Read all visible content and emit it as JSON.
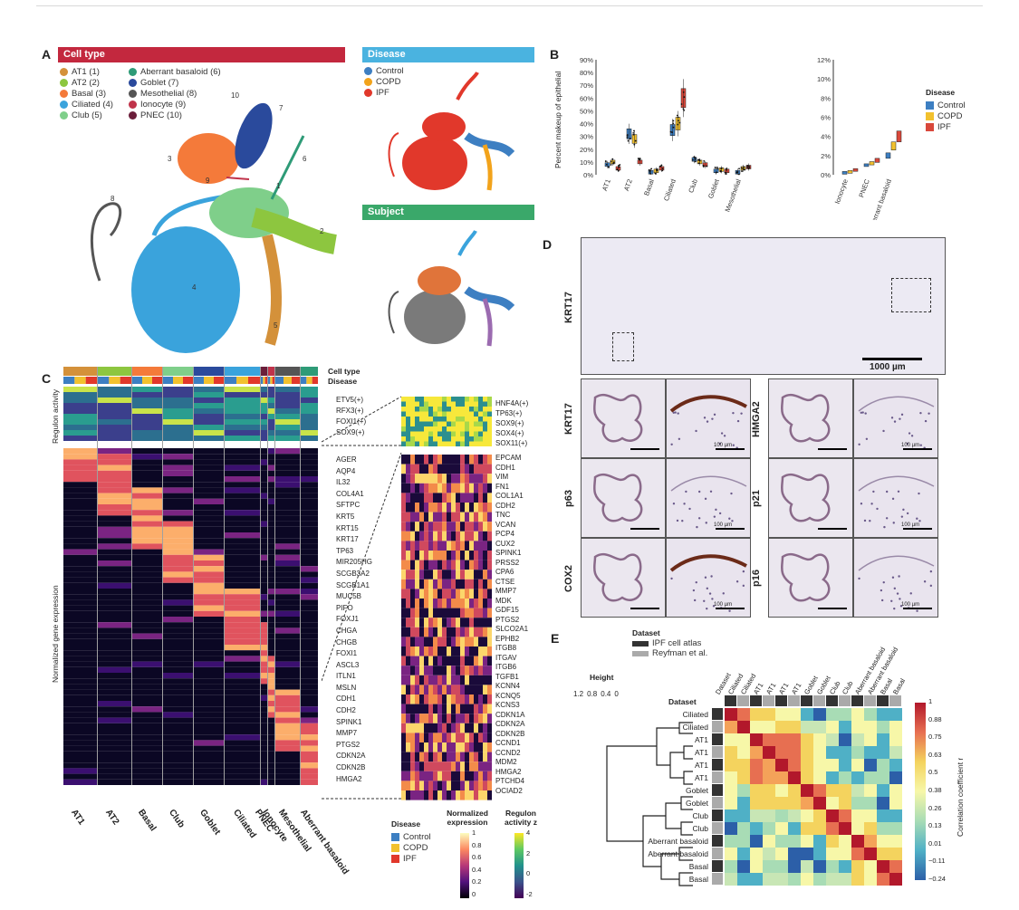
{
  "panels": {
    "A": "A",
    "B": "B",
    "C": "C",
    "D": "D",
    "E": "E"
  },
  "panelA": {
    "celltype_header": "Cell type",
    "celltype_legend": [
      {
        "label": "AT1",
        "num": "(1)",
        "color": "#d4913a"
      },
      {
        "label": "AT2",
        "num": "(2)",
        "color": "#8dc63f"
      },
      {
        "label": "Basal",
        "num": "(3)",
        "color": "#f47a3a"
      },
      {
        "label": "Ciliated",
        "num": "(4)",
        "color": "#3aa3dc"
      },
      {
        "label": "Club",
        "num": "(5)",
        "color": "#7fcf8a"
      },
      {
        "label": "Aberrant basaloid",
        "num": "(6)",
        "color": "#2e9b77"
      },
      {
        "label": "Goblet",
        "num": "(7)",
        "color": "#2a4a9c"
      },
      {
        "label": "Mesothelial",
        "num": "(8)",
        "color": "#555555"
      },
      {
        "label": "Ionocyte",
        "num": "(9)",
        "color": "#c0334a"
      },
      {
        "label": "PNEC",
        "num": "(10)",
        "color": "#6b1e3a"
      }
    ],
    "umap_numbers": [
      "1",
      "2",
      "3",
      "4",
      "5",
      "6",
      "7",
      "8",
      "9",
      "10"
    ],
    "disease_header": "Disease",
    "disease_legend": [
      {
        "label": "Control",
        "color": "#3d7fc2"
      },
      {
        "label": "COPD",
        "color": "#f2a31b"
      },
      {
        "label": "IPF",
        "color": "#e1382b"
      }
    ],
    "subject_header": "Subject",
    "header_colors": {
      "celltype": "#c3283e",
      "disease": "#4ab3e0",
      "subject": "#3aa86a"
    }
  },
  "panelB": {
    "ylabel": "Percent makeup of epithelial",
    "yticks_left": [
      "90%",
      "80%",
      "70%",
      "60%",
      "50%",
      "40%",
      "30%",
      "20%",
      "10%",
      "0%"
    ],
    "yticks_right": [
      "12%",
      "10%",
      "8%",
      "6%",
      "4%",
      "2%",
      "0%"
    ],
    "categories_left": [
      "AT1",
      "AT2",
      "Basal",
      "Ciliated",
      "Club",
      "Goblet",
      "Mesothelial"
    ],
    "categories_right": [
      "Ionocyte",
      "PNEC",
      "Aberrant basaloid"
    ],
    "legend_title": "Disease",
    "legend": [
      {
        "label": "Control",
        "color": "#3d7fc2"
      },
      {
        "label": "COPD",
        "color": "#f2c12e"
      },
      {
        "label": "IPF",
        "color": "#d9483b"
      }
    ]
  },
  "panelC": {
    "row_labels": {
      "celltype": "Cell type",
      "disease": "Disease"
    },
    "side_labels": {
      "regulon": "Regulon activity",
      "expr": "Normalized gene expression"
    },
    "regulon_genes": [
      "ETV5(+)",
      "RFX3(+)",
      "FOXI1(+)",
      "SOX9(+)"
    ],
    "marker_genes": [
      "AGER",
      "AQP4",
      "IL32",
      "COL4A1",
      "SFTPC",
      "KRT5",
      "KRT15",
      "KRT17",
      "TP63",
      "MIR205HG",
      "SCGB3A2",
      "SCGB1A1",
      "MUC5B",
      "PIFO",
      "FOXJ1",
      "CHGA",
      "CHGB",
      "FOXI1",
      "ASCL3",
      "ITLN1",
      "MSLN",
      "CDH1",
      "CDH2",
      "SPINK1",
      "MMP7",
      "PTGS2",
      "CDKN2A",
      "CDKN2B",
      "HMGA2"
    ],
    "zoom_regulon_genes": [
      "HNF4A(+)",
      "TP63(+)",
      "SOX9(+)",
      "SOX4(+)",
      "SOX11(+)"
    ],
    "zoom_genes": [
      "EPCAM",
      "CDH1",
      "VIM",
      "FN1",
      "COL1A1",
      "CDH2",
      "TNC",
      "VCAN",
      "PCP4",
      "CUX2",
      "SPINK1",
      "PRSS2",
      "CPA6",
      "CTSE",
      "MMP7",
      "MDK",
      "GDF15",
      "PTGS2",
      "SLCO2A1",
      "EPHB2",
      "ITGB8",
      "ITGAV",
      "ITGB6",
      "TGFB1",
      "KCNN4",
      "KCNQ5",
      "KCNS3",
      "CDKN1A",
      "CDKN2A",
      "CDKN2B",
      "CCND1",
      "CCND2",
      "MDM2",
      "HMGA2",
      "PTCHD4",
      "OCIAD2"
    ],
    "xcategories": [
      "AT1",
      "AT2",
      "Basal",
      "Club",
      "Goblet",
      "Ciliated",
      "PNEC",
      "Ionocyte",
      "Mesothelial",
      "Aberrant basaloid"
    ],
    "legend_disease_title": "Disease",
    "legend_disease": [
      {
        "label": "Control",
        "color": "#3d7fc2"
      },
      {
        "label": "COPD",
        "color": "#f2c12e"
      },
      {
        "label": "IPF",
        "color": "#e1382b"
      }
    ],
    "legend_expr_title": "Normalized expression",
    "legend_expr_ticks": [
      "1",
      "0.8",
      "0.6",
      "0.4",
      "0.2",
      "0"
    ],
    "legend_reg_title": "Regulon activity z",
    "legend_reg_ticks": [
      "4",
      "2",
      "0",
      "-2"
    ]
  },
  "panelD": {
    "label_top": "KRT17",
    "scale_top": "1000 µm",
    "scale_small": "100 µm",
    "rows_left": [
      "KRT17",
      "p63",
      "COX2"
    ],
    "rows_right": [
      "HMGA2",
      "p21",
      "p16"
    ]
  },
  "panelE": {
    "dataset_title": "Dataset",
    "dataset_legend": [
      {
        "label": "IPF cell atlas",
        "color": "#333333"
      },
      {
        "label": "Reyfman et al.",
        "color": "#aaaaaa"
      }
    ],
    "height_title": "Height",
    "height_ticks": [
      "1.2",
      "0.8",
      "0.4",
      "0"
    ],
    "dataset_row_label": "Dataset",
    "top_labels": [
      "Dataset",
      "Ciliated",
      "Ciliated",
      "AT1",
      "AT1",
      "AT1",
      "AT1",
      "Goblet",
      "Goblet",
      "Club",
      "Club",
      "Aberrant basaloid",
      "Aberrant basaloid",
      "Basal",
      "Basal"
    ],
    "row_labels": [
      "Ciliated",
      "Ciliated",
      "AT1",
      "AT1",
      "AT1",
      "AT1",
      "Goblet",
      "Goblet",
      "Club",
      "Club",
      "Aberrant basaloid",
      "Aberrant basaloid",
      "Basal",
      "Basal"
    ],
    "colorbar_title": "Correlation coefficient r",
    "colorbar_ticks": [
      "1",
      "0.88",
      "0.75",
      "0.63",
      "0.5",
      "0.38",
      "0.26",
      "0.13",
      "0.01",
      "−0.11",
      "−0.24"
    ]
  }
}
